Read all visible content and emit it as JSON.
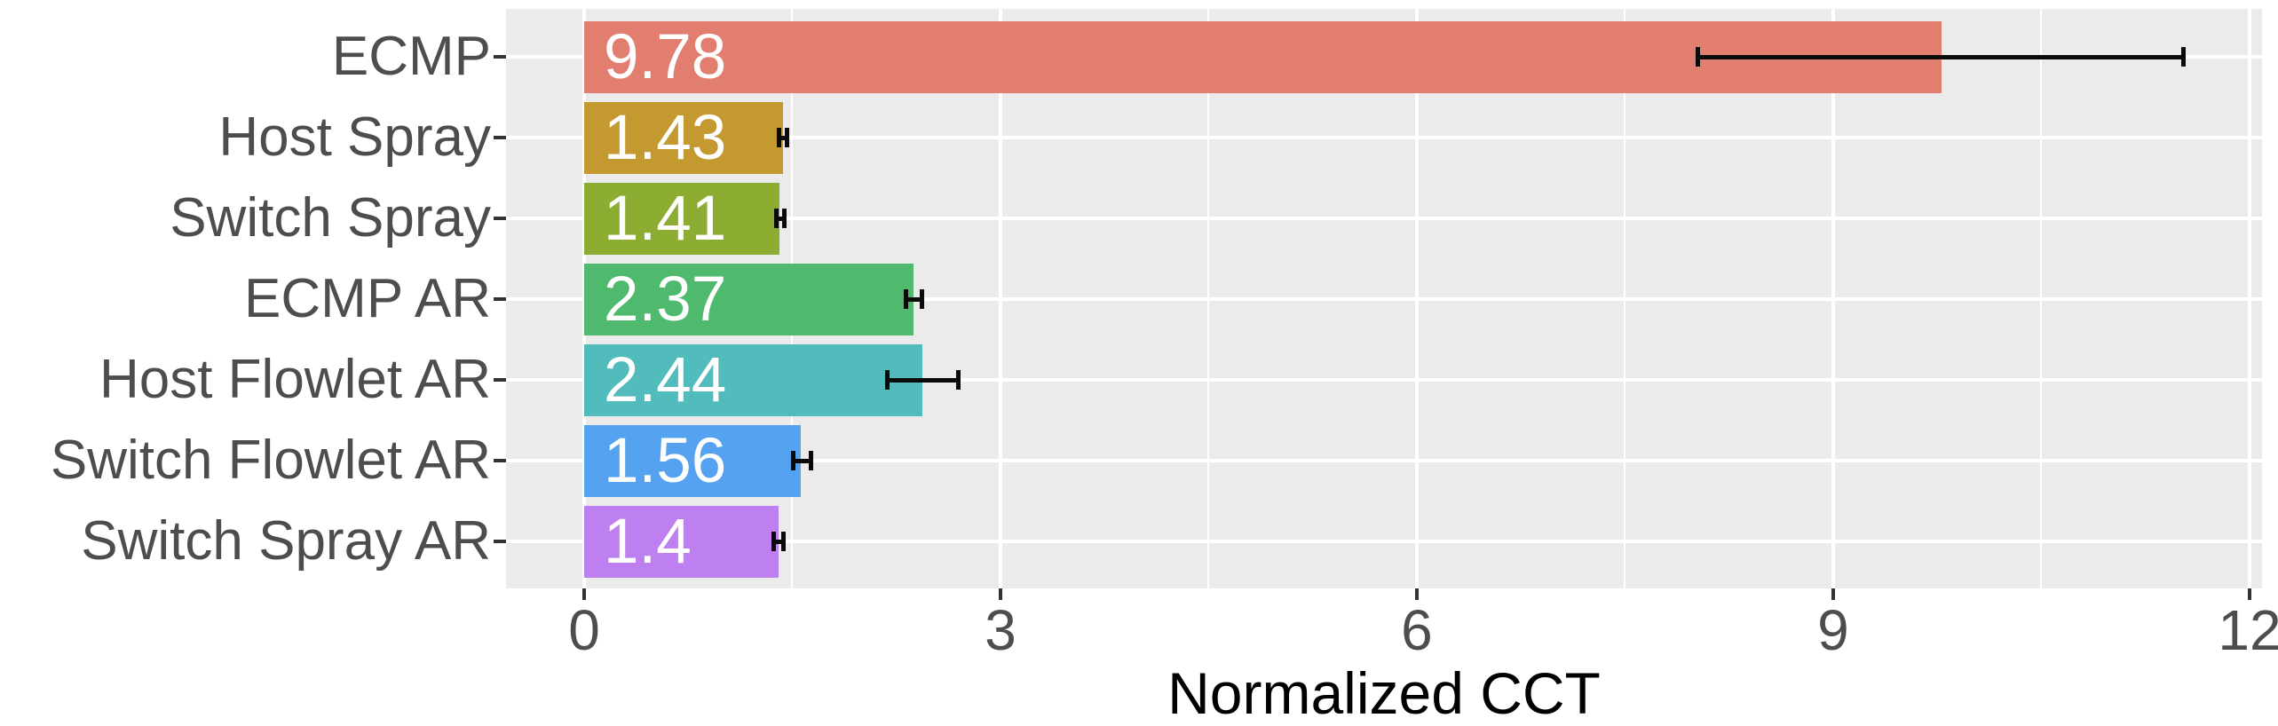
{
  "chart_data": {
    "type": "bar",
    "orientation": "horizontal",
    "title": "",
    "xlabel": "Normalized CCT",
    "ylabel": "",
    "xlim": [
      -0.56,
      12.09
    ],
    "x_ticks": [
      0,
      3,
      6,
      9,
      12
    ],
    "x_tick_labels": [
      "0",
      "3",
      "6",
      "9",
      "12"
    ],
    "x_minor_gridlines": [
      1.5,
      4.5,
      7.5,
      10.5
    ],
    "grid": "on",
    "legend_position": "none",
    "categories": [
      "ECMP",
      "Host Spray",
      "Switch Spray",
      "ECMP AR",
      "Host Flowlet AR",
      "Switch Flowlet AR",
      "Switch Spray AR"
    ],
    "values": [
      9.78,
      1.43,
      1.41,
      2.37,
      2.44,
      1.56,
      1.4
    ],
    "value_labels": [
      "9.78",
      "1.43",
      "1.41",
      "2.37",
      "2.44",
      "1.56",
      "1.4"
    ],
    "bar_colors": [
      "#E27E70",
      "#C49A30",
      "#8CAD32",
      "#4FB96D",
      "#52BCBD",
      "#55A2F0",
      "#BE80F0"
    ],
    "error_bars": [
      {
        "low": 8.03,
        "high": 11.52
      },
      {
        "low": 1.41,
        "high": 1.46
      },
      {
        "low": 1.39,
        "high": 1.44
      },
      {
        "low": 2.32,
        "high": 2.43
      },
      {
        "low": 2.19,
        "high": 2.69
      },
      {
        "low": 1.51,
        "high": 1.63
      },
      {
        "low": 1.37,
        "high": 1.43
      }
    ],
    "colors": {
      "panel_background": "#EBEBEB",
      "gridline": "#FFFFFF",
      "axis_text": "#4D4D4D",
      "axis_title": "#000000",
      "value_label": "#FFFFFF",
      "error_bar": "#0A0A0A",
      "tick_mark": "#333333"
    }
  }
}
